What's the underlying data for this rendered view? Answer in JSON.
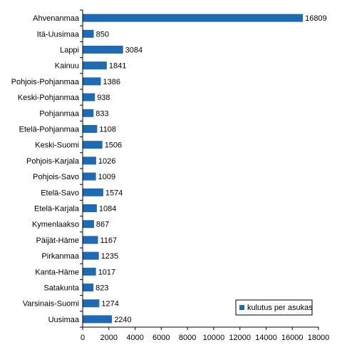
{
  "chart_data": {
    "type": "bar",
    "orientation": "horizontal",
    "categories": [
      "Ahvenanmaa",
      "Itä-Uusimaa",
      "Lappi",
      "Kainuu",
      "Pohjois-Pohjanmaa",
      "Keski-Pohjanmaa",
      "Pohjanmaa",
      "Etelä-Pohjanmaa",
      "Keski-Suomi",
      "Pohjois-Karjala",
      "Pohjois-Savo",
      "Etelä-Savo",
      "Etelä-Karjala",
      "Kymenlaakso",
      "Päijät-Häme",
      "Pirkanmaa",
      "Kanta-Häme",
      "Satakunta",
      "Varsinais-Suomi",
      "Uusimaa"
    ],
    "values": [
      16809,
      850,
      3084,
      1841,
      1386,
      938,
      833,
      1108,
      1506,
      1026,
      1009,
      1574,
      1084,
      867,
      1167,
      1235,
      1017,
      823,
      1274,
      2240
    ],
    "value_labels": [
      "16809",
      "850",
      "3084",
      "1841",
      "1386",
      "938",
      "833",
      "1108",
      "1506",
      "1026",
      "1009",
      "1574",
      "1084",
      "867",
      "1167",
      "1235",
      "1017",
      "823",
      "1274",
      "2240"
    ],
    "series_name": "kulutus per asukas",
    "xlim": [
      0,
      18000
    ],
    "x_ticks": [
      0,
      2000,
      4000,
      6000,
      8000,
      10000,
      12000,
      14000,
      16000,
      18000
    ],
    "x_tick_labels": [
      "0",
      "2000",
      "4000",
      "6000",
      "8000",
      "10000",
      "12000",
      "14000",
      "16000",
      "18000"
    ],
    "title": "",
    "xlabel": "",
    "ylabel": "",
    "grid": false,
    "legend_position": "bottom-right",
    "bar_color": "#1F6AB4",
    "axis_color": "#000000"
  }
}
